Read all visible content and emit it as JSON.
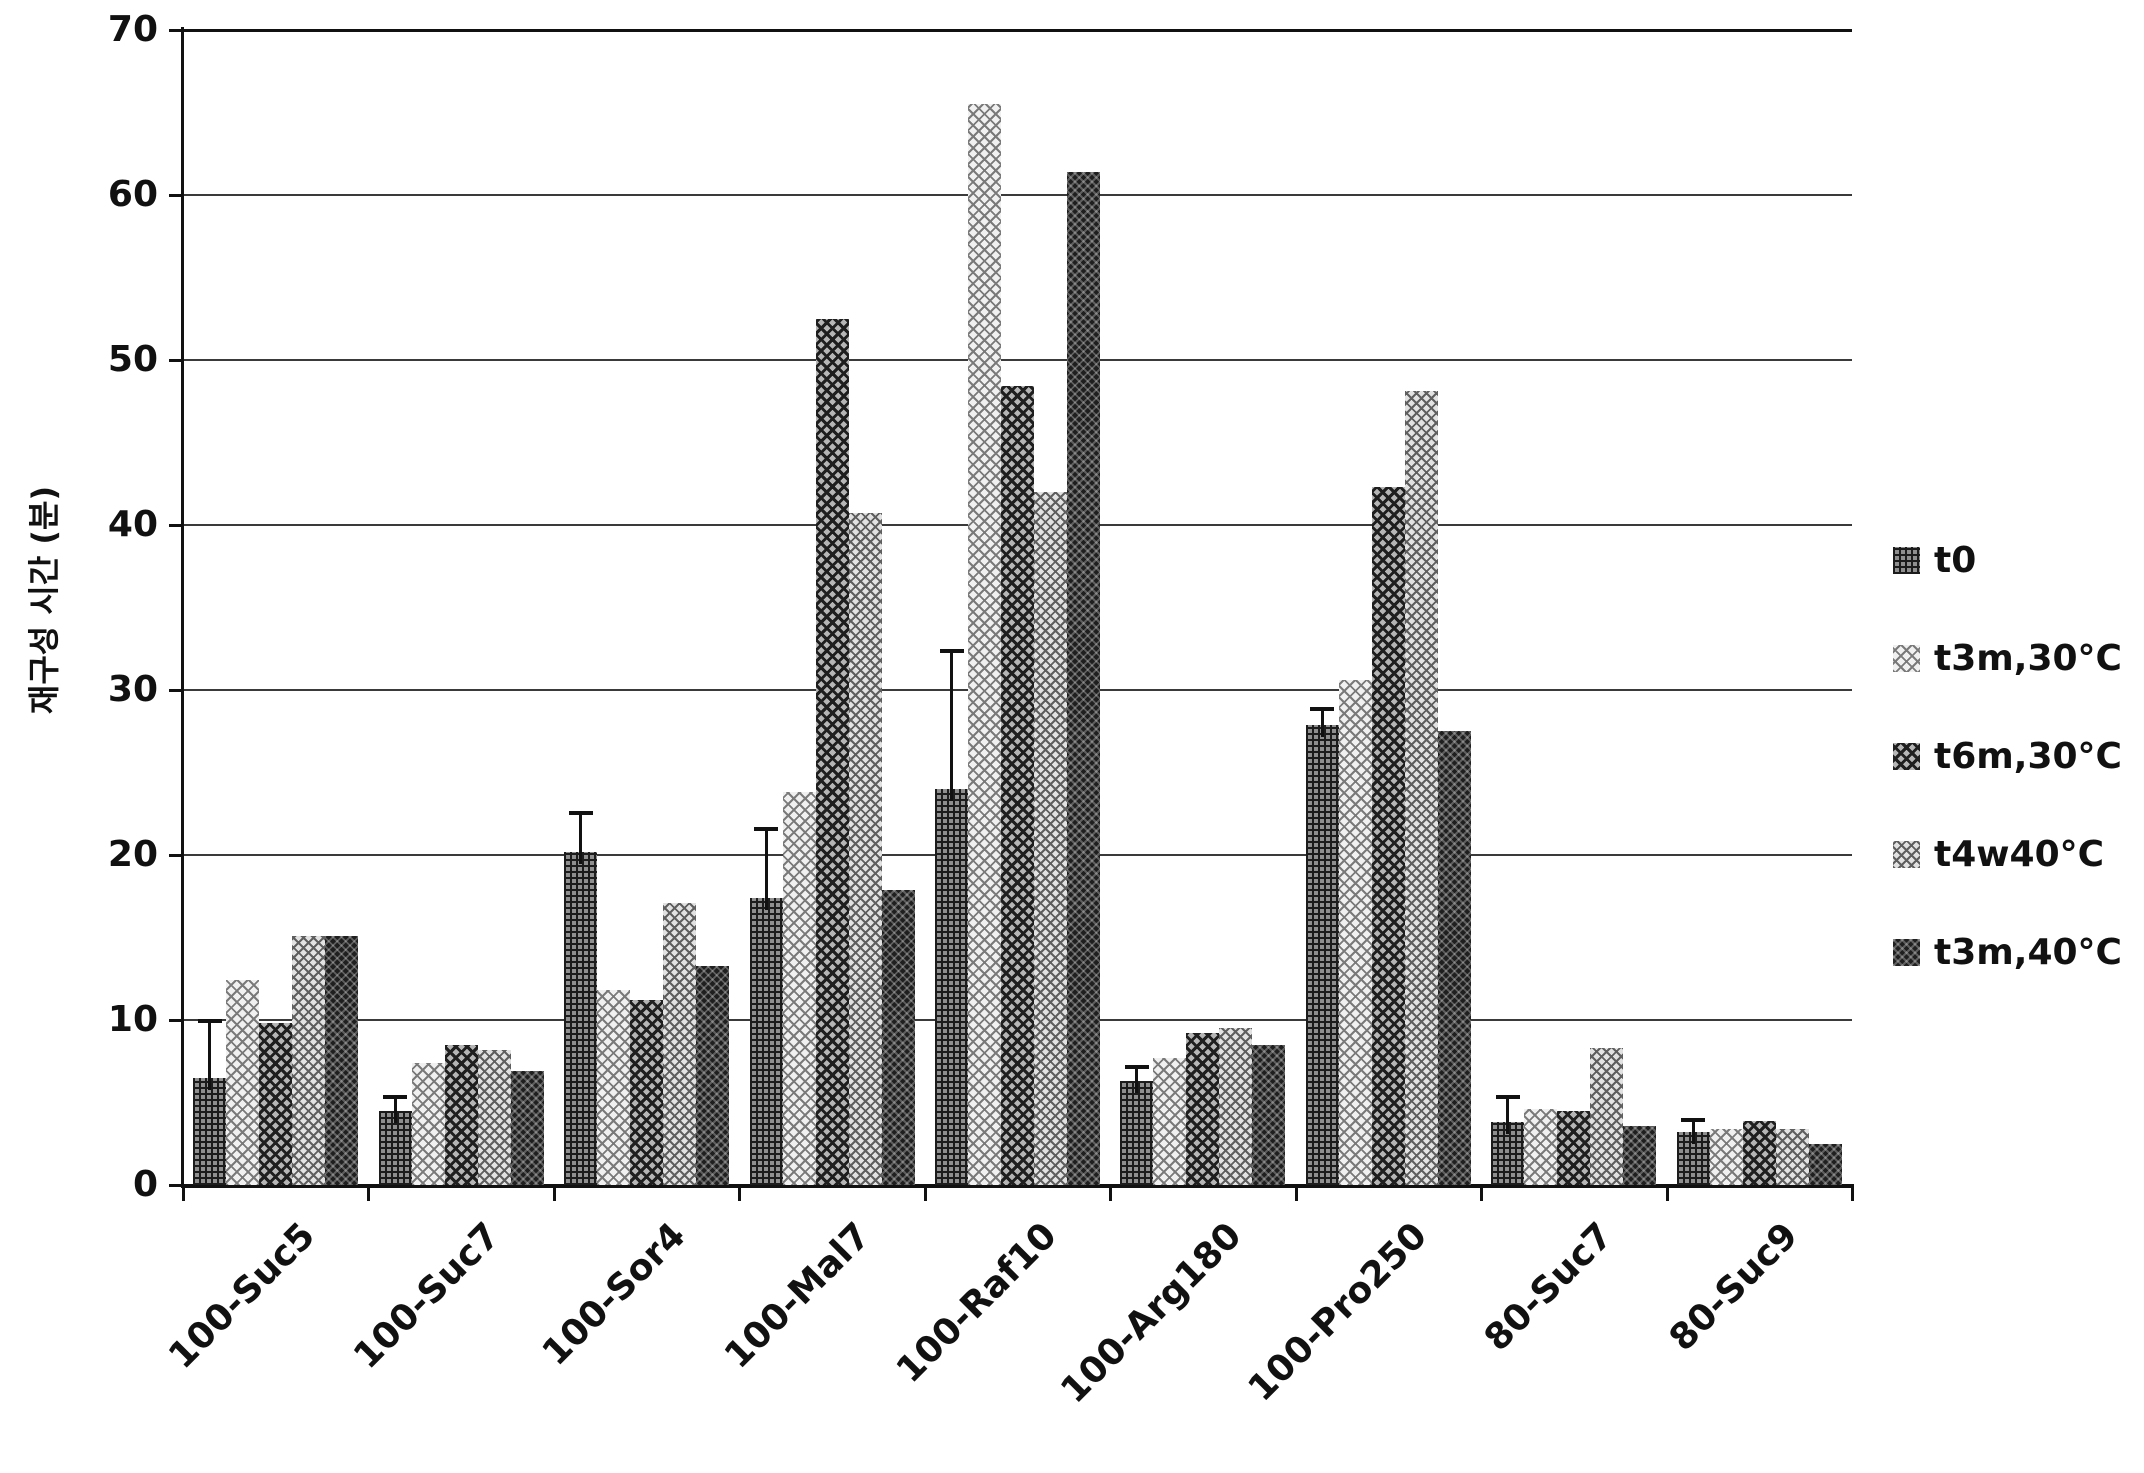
{
  "figure": {
    "background": "#ffffff",
    "text_color": "#111111",
    "gridline_color": "#3a3a3a"
  },
  "chart_data": {
    "type": "bar",
    "title": "",
    "xlabel": "",
    "ylabel": "재구성 시간 (분)",
    "ylim": [
      0,
      70
    ],
    "y_ticks": [
      0,
      10,
      20,
      30,
      40,
      50,
      60,
      70
    ],
    "grid": true,
    "legend_position": "right",
    "categories": [
      "100-Suc5",
      "100-Suc7",
      "100-Sor4",
      "100-Mal7",
      "100-Raf10",
      "100-Arg180",
      "100-Pro250",
      "80-Suc7",
      "80-Suc9"
    ],
    "series": [
      {
        "name": "t0",
        "pattern": "crosshatch-dark",
        "color": "#555555",
        "values": [
          6.5,
          4.5,
          20.2,
          17.4,
          24.0,
          6.3,
          27.9,
          3.8,
          3.2
        ],
        "error_plus": [
          3.4,
          0.8,
          2.3,
          4.1,
          8.3,
          0.8,
          0.9,
          1.5,
          0.7
        ]
      },
      {
        "name": "t3m,30°C",
        "pattern": "checker-light",
        "color": "#b8b8b8",
        "values": [
          12.4,
          7.4,
          11.8,
          23.8,
          65.5,
          7.7,
          30.6,
          4.6,
          3.4
        ]
      },
      {
        "name": "t6m,30°C",
        "pattern": "checker-mid-dark",
        "color": "#6e6e6e",
        "values": [
          9.8,
          8.5,
          11.2,
          52.5,
          48.4,
          9.2,
          42.3,
          4.5,
          3.9
        ]
      },
      {
        "name": "t4w40°C",
        "pattern": "checker-light-dense",
        "color": "#a5a5a5",
        "values": [
          15.1,
          8.2,
          17.1,
          40.7,
          42.0,
          9.5,
          48.1,
          8.3,
          3.4
        ]
      },
      {
        "name": "t3m,40°C",
        "pattern": "diamond-dark",
        "color": "#262626",
        "values": [
          15.1,
          6.9,
          13.3,
          17.9,
          61.4,
          8.5,
          27.5,
          3.6,
          2.5
        ]
      }
    ]
  }
}
